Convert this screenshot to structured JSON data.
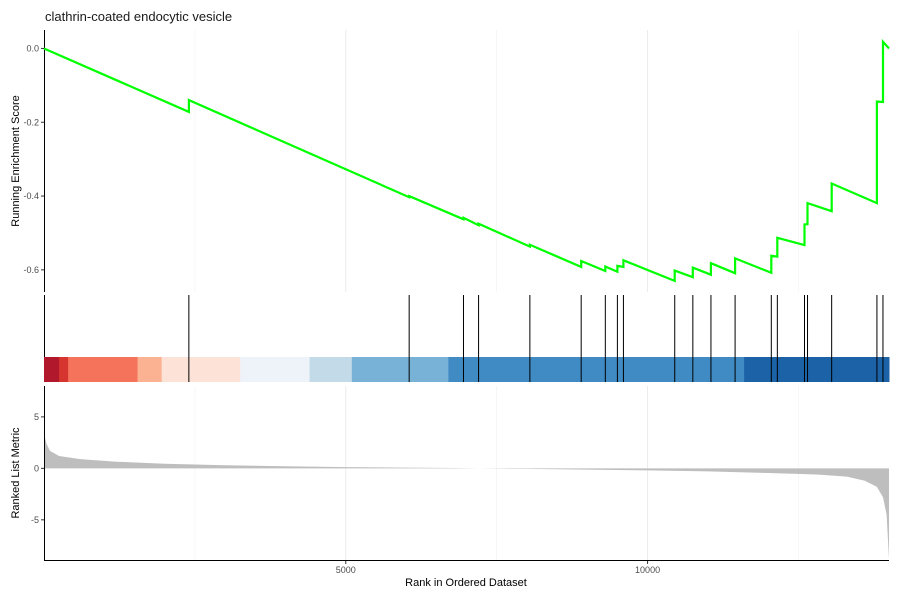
{
  "chart_data": {
    "type": "line",
    "title": "clathrin-coated endocytic vesicle",
    "xlabel": "Rank in Ordered Dataset",
    "xlim": [
      0,
      14000
    ],
    "x_ticks": [
      5000,
      10000
    ],
    "x_tick_labels": [
      "5000",
      "10000"
    ],
    "grid": true,
    "panels": [
      {
        "id": "running-score",
        "ylabel": "Running Enrichment Score",
        "ylim": [
          -0.66,
          0.05
        ],
        "y_ticks": [
          0.0,
          -0.2,
          -0.4,
          -0.6
        ],
        "y_tick_labels": [
          "0.0",
          "-0.2",
          "-0.4",
          "-0.6"
        ],
        "series": [
          {
            "color": "#00ff00",
            "points": [
              [
                0,
                0.0
              ],
              [
                2400,
                -0.172
              ],
              [
                2400,
                -0.14
              ],
              [
                6050,
                -0.403
              ],
              [
                6050,
                -0.4
              ],
              [
                6950,
                -0.463
              ],
              [
                6950,
                -0.459
              ],
              [
                7200,
                -0.479
              ],
              [
                7200,
                -0.475
              ],
              [
                8050,
                -0.537
              ],
              [
                8050,
                -0.532
              ],
              [
                8900,
                -0.592
              ],
              [
                8900,
                -0.576
              ],
              [
                9300,
                -0.603
              ],
              [
                9300,
                -0.591
              ],
              [
                9500,
                -0.605
              ],
              [
                9500,
                -0.589
              ],
              [
                9600,
                -0.592
              ],
              [
                9600,
                -0.574
              ],
              [
                10450,
                -0.63
              ],
              [
                10450,
                -0.602
              ],
              [
                10750,
                -0.62
              ],
              [
                10750,
                -0.594
              ],
              [
                11050,
                -0.613
              ],
              [
                11050,
                -0.582
              ],
              [
                11450,
                -0.609
              ],
              [
                11450,
                -0.569
              ],
              [
                12050,
                -0.608
              ],
              [
                12050,
                -0.562
              ],
              [
                12150,
                -0.564
              ],
              [
                12150,
                -0.513
              ],
              [
                12600,
                -0.533
              ],
              [
                12600,
                -0.477
              ],
              [
                12650,
                -0.476
              ],
              [
                12650,
                -0.419
              ],
              [
                13050,
                -0.441
              ],
              [
                13050,
                -0.366
              ],
              [
                13800,
                -0.419
              ],
              [
                13800,
                -0.144
              ],
              [
                13900,
                -0.145
              ],
              [
                13900,
                0.018
              ],
              [
                14000,
                0.0
              ]
            ]
          }
        ]
      },
      {
        "id": "gene-hits",
        "hits": [
          2400,
          6050,
          6950,
          7200,
          8050,
          8900,
          9300,
          9500,
          9600,
          10450,
          10750,
          11050,
          11450,
          12050,
          12150,
          12600,
          12650,
          13050,
          13800,
          13900
        ],
        "color_bar": [
          {
            "from": 0,
            "to": 250,
            "color": "#b2182b"
          },
          {
            "from": 250,
            "to": 400,
            "color": "#d6352f"
          },
          {
            "from": 400,
            "to": 1550,
            "color": "#f4735a"
          },
          {
            "from": 1550,
            "to": 1950,
            "color": "#fbb293"
          },
          {
            "from": 1950,
            "to": 3250,
            "color": "#fde3d7"
          },
          {
            "from": 3250,
            "to": 4400,
            "color": "#eef3fa"
          },
          {
            "from": 4400,
            "to": 5100,
            "color": "#c3dbe8"
          },
          {
            "from": 5100,
            "to": 6700,
            "color": "#78b3d7"
          },
          {
            "from": 6700,
            "to": 11600,
            "color": "#418bc4"
          },
          {
            "from": 11600,
            "to": 14000,
            "color": "#1b62a7"
          }
        ]
      },
      {
        "id": "ranked-metric",
        "ylabel": "Ranked List Metric",
        "ylim": [
          -9.0,
          8.0
        ],
        "y_ticks": [
          5,
          0,
          -5
        ],
        "y_tick_labels": [
          "5",
          "0",
          "-5"
        ],
        "fill_color": "#bebebe",
        "points": [
          [
            0,
            3.4
          ],
          [
            40,
            2.4
          ],
          [
            100,
            1.7
          ],
          [
            250,
            1.2
          ],
          [
            600,
            0.9
          ],
          [
            1200,
            0.65
          ],
          [
            2000,
            0.45
          ],
          [
            3000,
            0.3
          ],
          [
            4000,
            0.2
          ],
          [
            5000,
            0.12
          ],
          [
            6000,
            0.07
          ],
          [
            6800,
            0.03
          ],
          [
            7200,
            0.0
          ],
          [
            8000,
            -0.05
          ],
          [
            9000,
            -0.12
          ],
          [
            10000,
            -0.2
          ],
          [
            11000,
            -0.3
          ],
          [
            12000,
            -0.45
          ],
          [
            12800,
            -0.6
          ],
          [
            13300,
            -0.8
          ],
          [
            13600,
            -1.2
          ],
          [
            13800,
            -1.8
          ],
          [
            13900,
            -2.8
          ],
          [
            13960,
            -4.5
          ],
          [
            14000,
            -8.8
          ]
        ]
      }
    ]
  }
}
